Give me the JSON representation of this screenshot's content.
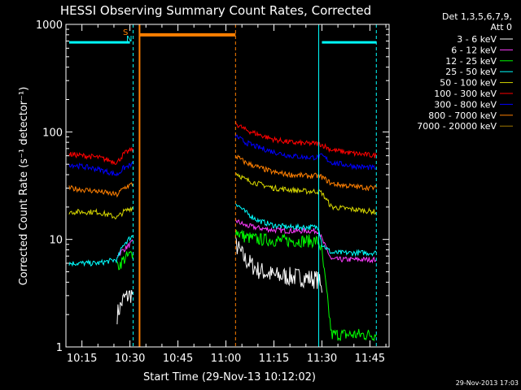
{
  "title": "HESSI Observing Summary Count Rates, Corrected",
  "xlabel": "Start Time (29-Nov-13 10:12:02)",
  "ylabel": "Corrected Count Rate (s⁻¹ detector⁻¹)",
  "stamp": "29-Nov-2013 17:03",
  "legend_header": [
    "Det 1,3,5,6,7,9,",
    "Att 0"
  ],
  "flag_labels": [
    "S",
    "N"
  ],
  "chart_data": {
    "type": "line",
    "title": "HESSI Observing Summary Count Rates, Corrected",
    "xlabel": "Start Time (29-Nov-13 10:12:02)",
    "ylabel": "Corrected Count Rate (s^-1 detector^-1)",
    "y_scale": "log",
    "ylim": [
      1,
      1000
    ],
    "xlim": [
      "10:10",
      "11:51"
    ],
    "x_ticks": [
      "10:15",
      "10:30",
      "10:45",
      "11:00",
      "11:15",
      "11:30",
      "11:45"
    ],
    "y_ticks": [
      "1",
      "10",
      "100",
      "1000"
    ],
    "grid": false,
    "legend_position": "right",
    "data_gaps": [
      [
        "10:32",
        "11:03"
      ]
    ],
    "series": [
      {
        "name": "3 - 6 keV",
        "color": "#ffffff",
        "points": [
          [
            "10:26",
            2
          ],
          [
            "10:28",
            2.8
          ],
          [
            "10:31",
            3.2
          ],
          [
            "11:03",
            9
          ],
          [
            "11:06",
            6.5
          ],
          [
            "11:10",
            5.2
          ],
          [
            "11:15",
            4.6
          ],
          [
            "11:20",
            4.5
          ],
          [
            "11:25",
            4.4
          ],
          [
            "11:29",
            4.2
          ],
          [
            "11:30",
            3.2
          ]
        ]
      },
      {
        "name": "6 - 12 keV",
        "color": "#ff3cff",
        "points": [
          [
            "10:26",
            7.2
          ],
          [
            "10:28",
            8
          ],
          [
            "10:31",
            9.5
          ],
          [
            "11:03",
            15
          ],
          [
            "11:06",
            13.5
          ],
          [
            "11:10",
            12.8
          ],
          [
            "11:15",
            12.2
          ],
          [
            "11:20",
            12
          ],
          [
            "11:25",
            12
          ],
          [
            "11:29",
            12
          ],
          [
            "11:30",
            10
          ],
          [
            "11:33",
            6.5
          ],
          [
            "11:40",
            6.5
          ],
          [
            "11:47",
            6.5
          ]
        ]
      },
      {
        "name": "12 - 25 keV",
        "color": "#00ff00",
        "points": [
          [
            "10:26",
            5.5
          ],
          [
            "10:28",
            6.5
          ],
          [
            "10:31",
            7.5
          ],
          [
            "11:03",
            12
          ],
          [
            "11:06",
            10.5
          ],
          [
            "11:10",
            10
          ],
          [
            "11:15",
            9.8
          ],
          [
            "11:20",
            9.7
          ],
          [
            "11:25",
            9.7
          ],
          [
            "11:29",
            9.6
          ],
          [
            "11:30",
            7.5
          ],
          [
            "11:33",
            1.3
          ],
          [
            "11:40",
            1.3
          ],
          [
            "11:47",
            1.3
          ]
        ]
      },
      {
        "name": "25 - 50 keV",
        "color": "#00ffff",
        "points": [
          [
            "10:11",
            6
          ],
          [
            "10:20",
            6
          ],
          [
            "10:26",
            6.5
          ],
          [
            "10:28",
            9
          ],
          [
            "10:31",
            11
          ],
          [
            "11:03",
            22
          ],
          [
            "11:06",
            18
          ],
          [
            "11:10",
            15
          ],
          [
            "11:15",
            13.5
          ],
          [
            "11:20",
            13
          ],
          [
            "11:25",
            13
          ],
          [
            "11:29",
            13
          ],
          [
            "11:30",
            9
          ],
          [
            "11:33",
            7.5
          ],
          [
            "11:40",
            7.5
          ],
          [
            "11:47",
            7.5
          ]
        ]
      },
      {
        "name": "50 - 100 keV",
        "color": "#d7d700",
        "points": [
          [
            "10:11",
            18
          ],
          [
            "10:20",
            18
          ],
          [
            "10:26",
            16
          ],
          [
            "10:28",
            18
          ],
          [
            "10:31",
            20
          ],
          [
            "11:03",
            42
          ],
          [
            "11:06",
            36
          ],
          [
            "11:10",
            33
          ],
          [
            "11:15",
            30
          ],
          [
            "11:20",
            29
          ],
          [
            "11:25",
            28
          ],
          [
            "11:29",
            28
          ],
          [
            "11:30",
            27
          ],
          [
            "11:33",
            20
          ],
          [
            "11:40",
            19
          ],
          [
            "11:47",
            18
          ]
        ]
      },
      {
        "name": "100 - 300 keV",
        "color": "#ff0000",
        "points": [
          [
            "10:11",
            62
          ],
          [
            "10:20",
            58
          ],
          [
            "10:26",
            52
          ],
          [
            "10:28",
            62
          ],
          [
            "10:31",
            70
          ],
          [
            "11:03",
            120
          ],
          [
            "11:06",
            105
          ],
          [
            "11:10",
            95
          ],
          [
            "11:15",
            85
          ],
          [
            "11:20",
            80
          ],
          [
            "11:25",
            78
          ],
          [
            "11:29",
            78
          ],
          [
            "11:30",
            76
          ],
          [
            "11:33",
            68
          ],
          [
            "11:40",
            63
          ],
          [
            "11:47",
            60
          ]
        ]
      },
      {
        "name": "300 - 800 keV",
        "color": "#0000ff",
        "points": [
          [
            "10:11",
            50
          ],
          [
            "10:20",
            45
          ],
          [
            "10:26",
            40
          ],
          [
            "10:28",
            46
          ],
          [
            "10:31",
            50
          ],
          [
            "11:03",
            92
          ],
          [
            "11:06",
            80
          ],
          [
            "11:10",
            72
          ],
          [
            "11:15",
            65
          ],
          [
            "11:20",
            60
          ],
          [
            "11:25",
            58
          ],
          [
            "11:29",
            58
          ],
          [
            "11:30",
            60
          ],
          [
            "11:33",
            52
          ],
          [
            "11:40",
            48
          ],
          [
            "11:47",
            46
          ]
        ]
      },
      {
        "name": "800 - 7000 keV",
        "color": "#ff7f00",
        "points": [
          [
            "10:11",
            30
          ],
          [
            "10:20",
            28
          ],
          [
            "10:26",
            26
          ],
          [
            "10:28",
            30
          ],
          [
            "10:31",
            33
          ],
          [
            "11:03",
            60
          ],
          [
            "11:06",
            52
          ],
          [
            "11:10",
            47
          ],
          [
            "11:15",
            42
          ],
          [
            "11:20",
            40
          ],
          [
            "11:25",
            39
          ],
          [
            "11:29",
            39
          ],
          [
            "11:30",
            38
          ],
          [
            "11:33",
            33
          ],
          [
            "11:40",
            31
          ],
          [
            "11:47",
            30
          ]
        ]
      },
      {
        "name": "7000 - 20000 keV",
        "color": "#a07800",
        "points": []
      }
    ],
    "annotations": [
      {
        "type": "cyan-line",
        "x": "10:31",
        "style": "dashed"
      },
      {
        "type": "cyan-line",
        "x": "11:29",
        "style": "solid"
      },
      {
        "type": "cyan-line",
        "x": "11:47",
        "style": "dashed"
      },
      {
        "type": "orange-line",
        "x": "10:33",
        "style": "solid"
      },
      {
        "type": "orange-line",
        "x": "11:03",
        "style": "dashed"
      },
      {
        "type": "cyan-flag-bar",
        "x": [
          "10:11",
          "10:30"
        ],
        "y": 680
      },
      {
        "type": "cyan-flag-bar",
        "x": [
          "11:30",
          "11:47"
        ],
        "y": 680
      },
      {
        "type": "orange-flag-bar",
        "x": [
          "10:33",
          "11:03"
        ],
        "y": 800
      }
    ]
  }
}
